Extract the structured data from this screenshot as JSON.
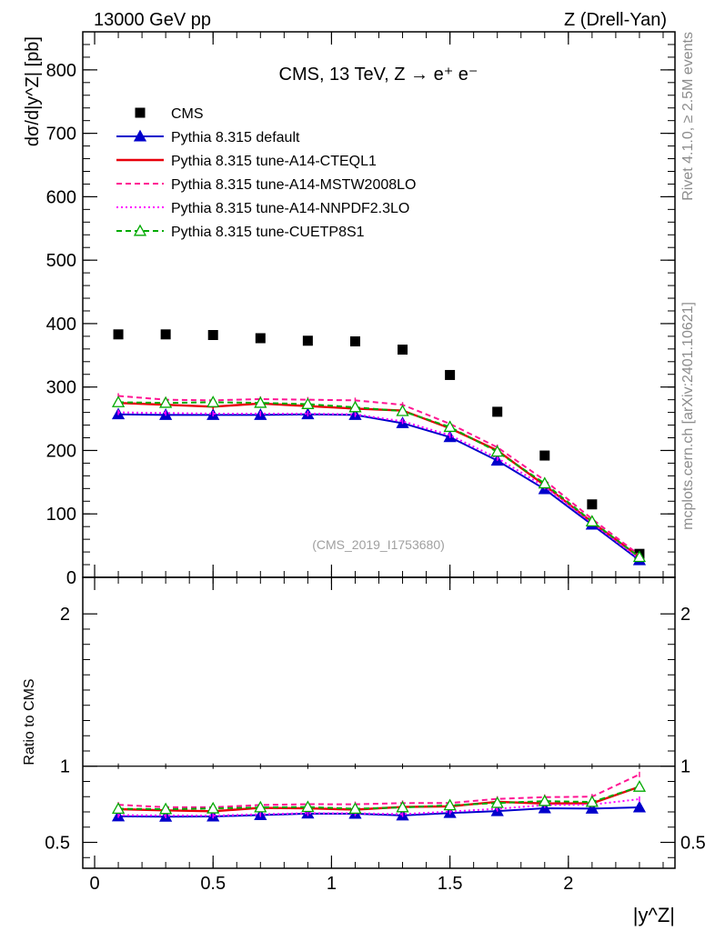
{
  "header": {
    "left": "13000 GeV pp",
    "right": "Z (Drell-Yan)"
  },
  "side_labels": {
    "rivet": "Rivet 4.1.0, ≥ 2.5M events",
    "mcplots": "mcplots.cern.ch [arXiv:2401.10621]"
  },
  "chart_data": {
    "type": "scatter",
    "title": "CMS, 13 TeV, Z →  e⁺ e⁻",
    "xlabel": "|y^Z|",
    "ylabel": "dσ/d|y^Z| [pb]",
    "ratio_ylabel": "Ratio to CMS",
    "analysis_tag": "(CMS_2019_I1753680)",
    "xlim": [
      -0.05,
      2.45
    ],
    "ylim": [
      0,
      860
    ],
    "ratio_ylim": [
      0.33,
      2.24
    ],
    "x_ticks": [
      0,
      0.5,
      1,
      1.5,
      2
    ],
    "x_tick_labels": [
      "0",
      "0.5",
      "1",
      "1.5",
      "2"
    ],
    "y_ticks": [
      0,
      100,
      200,
      300,
      400,
      500,
      600,
      700,
      800
    ],
    "y_tick_labels": [
      "0",
      "100",
      "200",
      "300",
      "400",
      "500",
      "600",
      "700",
      "800"
    ],
    "ratio_ticks": [
      0.5,
      1,
      2
    ],
    "ratio_tick_labels": [
      "0.5",
      "1",
      "2"
    ],
    "x": [
      0.1,
      0.3,
      0.5,
      0.7,
      0.9,
      1.1,
      1.3,
      1.5,
      1.7,
      1.9,
      2.1,
      2.3
    ],
    "series": [
      {
        "name": "CMS",
        "color": "#000000",
        "style": "data",
        "values": [
          383,
          383,
          382,
          377,
          373,
          372,
          359,
          319,
          261,
          192,
          115,
          37
        ]
      },
      {
        "name": "Pythia 8.315 default",
        "color": "#0000cc",
        "style": "solid-triangle",
        "values": [
          257,
          256,
          256,
          256,
          257,
          256,
          243,
          221,
          184,
          139,
          83,
          27
        ]
      },
      {
        "name": "Pythia 8.315 tune-A14-CTEQL1",
        "color": "#e8000b",
        "style": "solid",
        "values": [
          275,
          272,
          269,
          274,
          270,
          266,
          263,
          235,
          200,
          145,
          87,
          32
        ]
      },
      {
        "name": "Pythia 8.315 tune-A14-MSTW2008LO",
        "color": "#ff1493",
        "style": "dashed",
        "values": [
          286,
          280,
          279,
          281,
          280,
          279,
          272,
          242,
          205,
          153,
          92,
          35
        ]
      },
      {
        "name": "Pythia 8.315 tune-A14-NNPDF2.3LO",
        "color": "#ff00ff",
        "style": "dotted",
        "values": [
          260,
          259,
          258,
          258,
          258,
          257,
          246,
          224,
          188,
          143,
          86,
          29
        ]
      },
      {
        "name": "Pythia 8.315 tune-CUETP8S1",
        "color": "#00aa00",
        "style": "dashed-open-triangle",
        "values": [
          276,
          275,
          276,
          275,
          273,
          268,
          262,
          237,
          198,
          148,
          88,
          32
        ]
      }
    ],
    "legend_location": "upper-left"
  }
}
